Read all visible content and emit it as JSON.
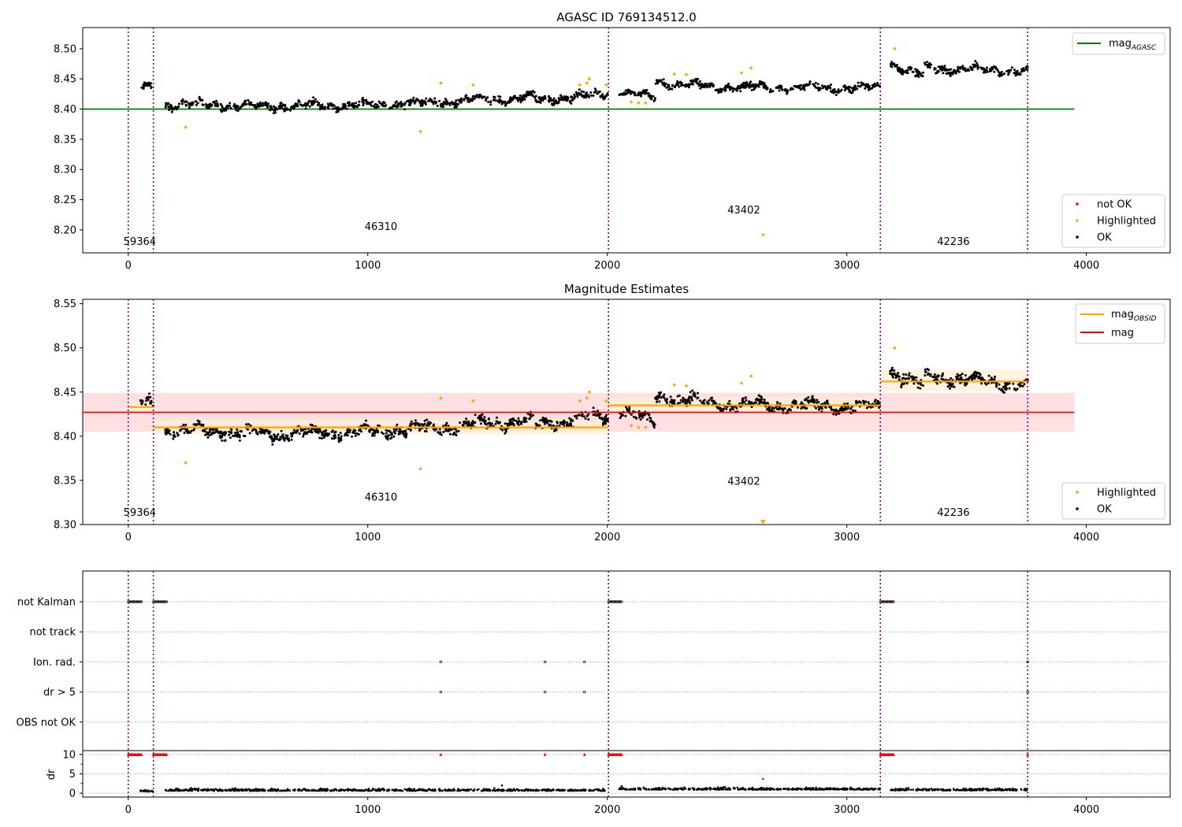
{
  "chart_data": [
    {
      "type": "scatter",
      "title": "AGASC ID 769134512.0",
      "xlim": [
        -190,
        4350
      ],
      "ylim": [
        8.162,
        8.535
      ],
      "xticks": [
        0,
        1000,
        2000,
        3000,
        4000
      ],
      "yticks": [
        8.2,
        8.25,
        8.3,
        8.35,
        8.4,
        8.45,
        8.5
      ],
      "vlines": [
        0,
        105,
        2005,
        3140,
        3755
      ],
      "obsids": [
        {
          "label": "59364",
          "x": 48,
          "y": 8.175
        },
        {
          "label": "46310",
          "x": 1055,
          "y": 8.2
        },
        {
          "label": "43402",
          "x": 2570,
          "y": 8.227
        },
        {
          "label": "42236",
          "x": 3445,
          "y": 8.175
        }
      ],
      "lines": [
        {
          "name": "mag_AGASC",
          "y": 8.4,
          "x": [
            -190,
            3950
          ],
          "color": "#008000"
        }
      ],
      "series": [
        {
          "name": "OK",
          "color": "#000000",
          "segments": [
            {
              "x": [
                50,
                105
              ],
              "base": [
                8.435,
                8.435
              ],
              "noise": 0.007
            },
            {
              "x": [
                155,
                650
              ],
              "base": [
                8.408,
                8.405
              ],
              "noise": 0.008
            },
            {
              "x": [
                650,
                1000
              ],
              "base": [
                8.405,
                8.407
              ],
              "noise": 0.008
            },
            {
              "x": [
                1000,
                1700
              ],
              "base": [
                8.405,
                8.42
              ],
              "noise": 0.008
            },
            {
              "x": [
                1700,
                2005
              ],
              "base": [
                8.415,
                8.425
              ],
              "noise": 0.008
            },
            {
              "x": [
                2050,
                2200
              ],
              "base": [
                8.43,
                8.418
              ],
              "noise": 0.007
            },
            {
              "x": [
                2200,
                2380
              ],
              "base": [
                8.445,
                8.44
              ],
              "noise": 0.008
            },
            {
              "x": [
                2380,
                3140
              ],
              "base": [
                8.437,
                8.435
              ],
              "noise": 0.007
            },
            {
              "x": [
                3180,
                3320
              ],
              "base": [
                8.475,
                8.455
              ],
              "noise": 0.009
            },
            {
              "x": [
                3320,
                3755
              ],
              "base": [
                8.468,
                8.462
              ],
              "noise": 0.008
            }
          ]
        },
        {
          "name": "Highlighted",
          "color": "#ffa500",
          "points": [
            [
              240,
              8.37
            ],
            [
              1220,
              8.363
            ],
            [
              1305,
              8.443
            ],
            [
              1440,
              8.44
            ],
            [
              1885,
              8.44
            ],
            [
              1915,
              8.443
            ],
            [
              1925,
              8.45
            ],
            [
              1995,
              8.44
            ],
            [
              2100,
              8.412
            ],
            [
              2130,
              8.41
            ],
            [
              2160,
              8.41
            ],
            [
              2280,
              8.458
            ],
            [
              2330,
              8.457
            ],
            [
              2560,
              8.46
            ],
            [
              2600,
              8.468
            ],
            [
              2650,
              8.192
            ],
            [
              3200,
              8.5
            ]
          ]
        },
        {
          "name": "not OK",
          "color": "#ff0000",
          "points": []
        }
      ],
      "legend_top": [
        "mag_AGASC"
      ],
      "legend_bottom": [
        "not OK",
        "Highlighted",
        "OK"
      ]
    },
    {
      "type": "scatter",
      "title": "Magnitude Estimates",
      "xlim": [
        -190,
        4350
      ],
      "ylim": [
        8.3,
        8.555
      ],
      "xticks": [
        0,
        1000,
        2000,
        3000,
        4000
      ],
      "yticks": [
        8.3,
        8.35,
        8.4,
        8.45,
        8.5,
        8.55
      ],
      "vlines": [
        0,
        105,
        2005,
        3140,
        3755
      ],
      "obsids": [
        {
          "label": "59364",
          "x": 48,
          "y": 8.31
        },
        {
          "label": "46310",
          "x": 1055,
          "y": 8.327
        },
        {
          "label": "43402",
          "x": 2570,
          "y": 8.345
        },
        {
          "label": "42236",
          "x": 3445,
          "y": 8.31
        }
      ],
      "mag": {
        "y": 8.427,
        "band": [
          8.405,
          8.449
        ],
        "x": [
          -190,
          3950
        ],
        "color": "#ff0000"
      },
      "mag_obsid": [
        {
          "x": [
            0,
            105
          ],
          "y": 8.433,
          "band": [
            8.428,
            8.44
          ]
        },
        {
          "x": [
            105,
            2005
          ],
          "y": 8.41,
          "band": [
            8.402,
            8.418
          ]
        },
        {
          "x": [
            2005,
            3140
          ],
          "y": 8.435,
          "band": [
            8.428,
            8.444
          ]
        },
        {
          "x": [
            3140,
            3755
          ],
          "y": 8.462,
          "band": [
            8.451,
            8.475
          ]
        }
      ],
      "series": [
        {
          "name": "OK",
          "color": "#000000",
          "segments": [
            {
              "x": [
                50,
                105
              ],
              "base": [
                8.437,
                8.435
              ],
              "noise": 0.007
            },
            {
              "x": [
                155,
                650
              ],
              "base": [
                8.408,
                8.402
              ],
              "noise": 0.008
            },
            {
              "x": [
                650,
                1000
              ],
              "base": [
                8.403,
                8.405
              ],
              "noise": 0.008
            },
            {
              "x": [
                1000,
                1700
              ],
              "base": [
                8.405,
                8.418
              ],
              "noise": 0.008
            },
            {
              "x": [
                1700,
                2005
              ],
              "base": [
                8.413,
                8.423
              ],
              "noise": 0.008
            },
            {
              "x": [
                2050,
                2200
              ],
              "base": [
                8.43,
                8.415
              ],
              "noise": 0.007
            },
            {
              "x": [
                2200,
                2380
              ],
              "base": [
                8.445,
                8.44
              ],
              "noise": 0.008
            },
            {
              "x": [
                2380,
                3140
              ],
              "base": [
                8.437,
                8.433
              ],
              "noise": 0.007
            },
            {
              "x": [
                3180,
                3320
              ],
              "base": [
                8.475,
                8.455
              ],
              "noise": 0.009
            },
            {
              "x": [
                3320,
                3755
              ],
              "base": [
                8.468,
                8.458
              ],
              "noise": 0.008
            }
          ]
        },
        {
          "name": "Highlighted",
          "color": "#ffa500",
          "points": [
            [
              240,
              8.37
            ],
            [
              1220,
              8.363
            ],
            [
              1305,
              8.443
            ],
            [
              1440,
              8.44
            ],
            [
              1885,
              8.44
            ],
            [
              1915,
              8.443
            ],
            [
              1925,
              8.45
            ],
            [
              1995,
              8.44
            ],
            [
              2100,
              8.412
            ],
            [
              2130,
              8.41
            ],
            [
              2160,
              8.41
            ],
            [
              2280,
              8.458
            ],
            [
              2330,
              8.457
            ],
            [
              2560,
              8.46
            ],
            [
              2600,
              8.468
            ],
            [
              3200,
              8.5
            ]
          ]
        }
      ],
      "offscale_marker": {
        "x": 2650,
        "y": 8.303
      },
      "legend_top": [
        "mag_OBSID",
        "mag"
      ],
      "legend_bottom": [
        "Highlighted",
        "OK"
      ]
    },
    {
      "type": "scatter",
      "xlim": [
        -190,
        4350
      ],
      "xticks": [
        0,
        1000,
        2000,
        3000,
        4000
      ],
      "vlines": [
        0,
        105,
        2005,
        3140,
        3755
      ],
      "flag_rows": [
        "not Kalman",
        "not track",
        "Ion. rad.",
        "dr > 5",
        "OBS not OK"
      ],
      "flags": {
        "not Kalman": [
          [
            0,
            55
          ],
          [
            105,
            160
          ],
          [
            2005,
            2060
          ],
          [
            3140,
            3195
          ]
        ],
        "not track": [],
        "Ion. rad.": [
          [
            1305,
            1305
          ],
          [
            1740,
            1740
          ],
          [
            1905,
            1905
          ],
          [
            3755,
            3755
          ]
        ],
        "dr > 5": [
          [
            1305,
            1305
          ],
          [
            1740,
            1740
          ],
          [
            1905,
            1905
          ],
          [
            3755,
            3755
          ]
        ],
        "OBS not OK": []
      },
      "dr": {
        "ylabel": "dr",
        "ylim": [
          -1,
          11
        ],
        "yticks": [
          0,
          5,
          10
        ],
        "clip_at": 10,
        "segments": [
          {
            "x": [
              50,
              105
            ],
            "base": 0.4
          },
          {
            "x": [
              155,
              2005
            ],
            "base": 0.6
          },
          {
            "x": [
              2050,
              3140
            ],
            "base": 0.9
          },
          {
            "x": [
              3180,
              3755
            ],
            "base": 0.7
          }
        ],
        "red_points": [
          [
            0,
            55
          ],
          [
            105,
            160
          ],
          [
            1305,
            1305
          ],
          [
            1740,
            1740
          ],
          [
            1905,
            1905
          ],
          [
            2005,
            2060
          ],
          [
            3140,
            3195
          ],
          [
            3755,
            3755
          ]
        ],
        "outliers": [
          [
            2650,
            3.7
          ],
          [
            1560,
            2.0
          ],
          [
            2060,
            1.8
          ]
        ]
      }
    }
  ],
  "labels": {
    "mag": "mag",
    "mag_agasc_sub": "AGASC",
    "mag_obsid_sub": "OBSID",
    "not_ok": "not OK",
    "highlighted": "Highlighted",
    "ok": "OK"
  },
  "colors": {
    "ok": "#000000",
    "highlighted": "#ffa500",
    "not_ok": "#ff0000",
    "agasc": "#008000",
    "mag": "#ff0000",
    "mag_obsid": "#ffa500",
    "vline": "#800080",
    "band_mag": "#ffe0e0",
    "band_obsid": "#fff0d8"
  }
}
